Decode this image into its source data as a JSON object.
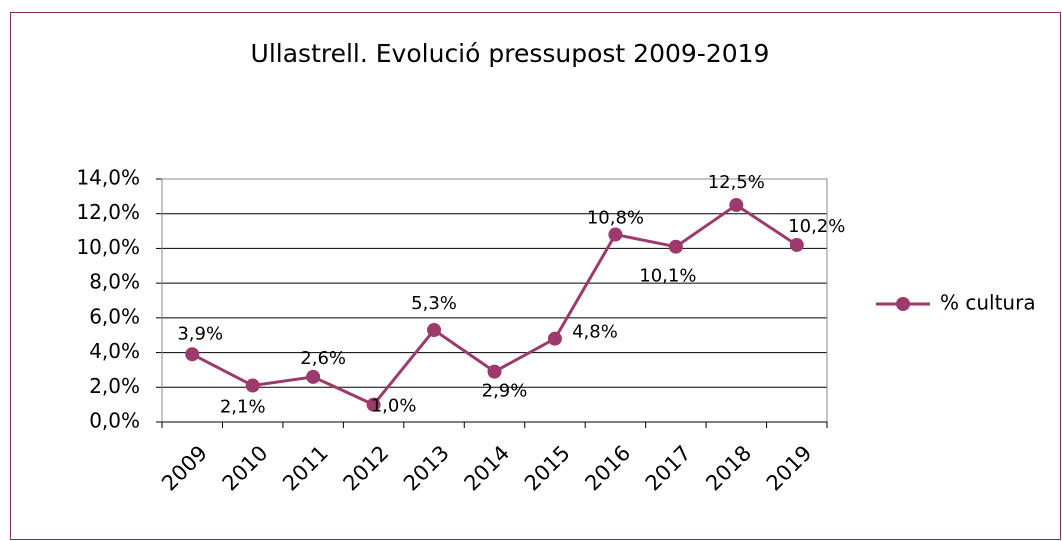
{
  "chart_data": {
    "type": "line",
    "title": "Ullastrell. Evolució pressupost 2009-2019",
    "categories": [
      "2009",
      "2010",
      "2011",
      "2012",
      "2013",
      "2014",
      "2015",
      "2016",
      "2017",
      "2018",
      "2019"
    ],
    "series": [
      {
        "name": "% cultura",
        "color": "#9b3a6b",
        "values": [
          3.9,
          2.1,
          2.6,
          1.0,
          5.3,
          2.9,
          4.8,
          10.8,
          10.1,
          12.5,
          10.2
        ],
        "value_labels": [
          "3,9%",
          "2,1%",
          "2,6%",
          "1,0%",
          "5,3%",
          "2,9%",
          "4,8%",
          "10,8%",
          "10,1%",
          "12,5%",
          "10,2%"
        ]
      }
    ],
    "ylim": [
      0,
      14
    ],
    "yticks": [
      {
        "value": 0,
        "label": "0,0%"
      },
      {
        "value": 2,
        "label": "2,0%"
      },
      {
        "value": 4,
        "label": "4,0%"
      },
      {
        "value": 6,
        "label": "6,0%"
      },
      {
        "value": 8,
        "label": "8,0%"
      },
      {
        "value": 10,
        "label": "10,0%"
      },
      {
        "value": 12,
        "label": "12,0%"
      },
      {
        "value": 14,
        "label": "14,0%"
      }
    ],
    "grid": true,
    "legend": "right"
  }
}
